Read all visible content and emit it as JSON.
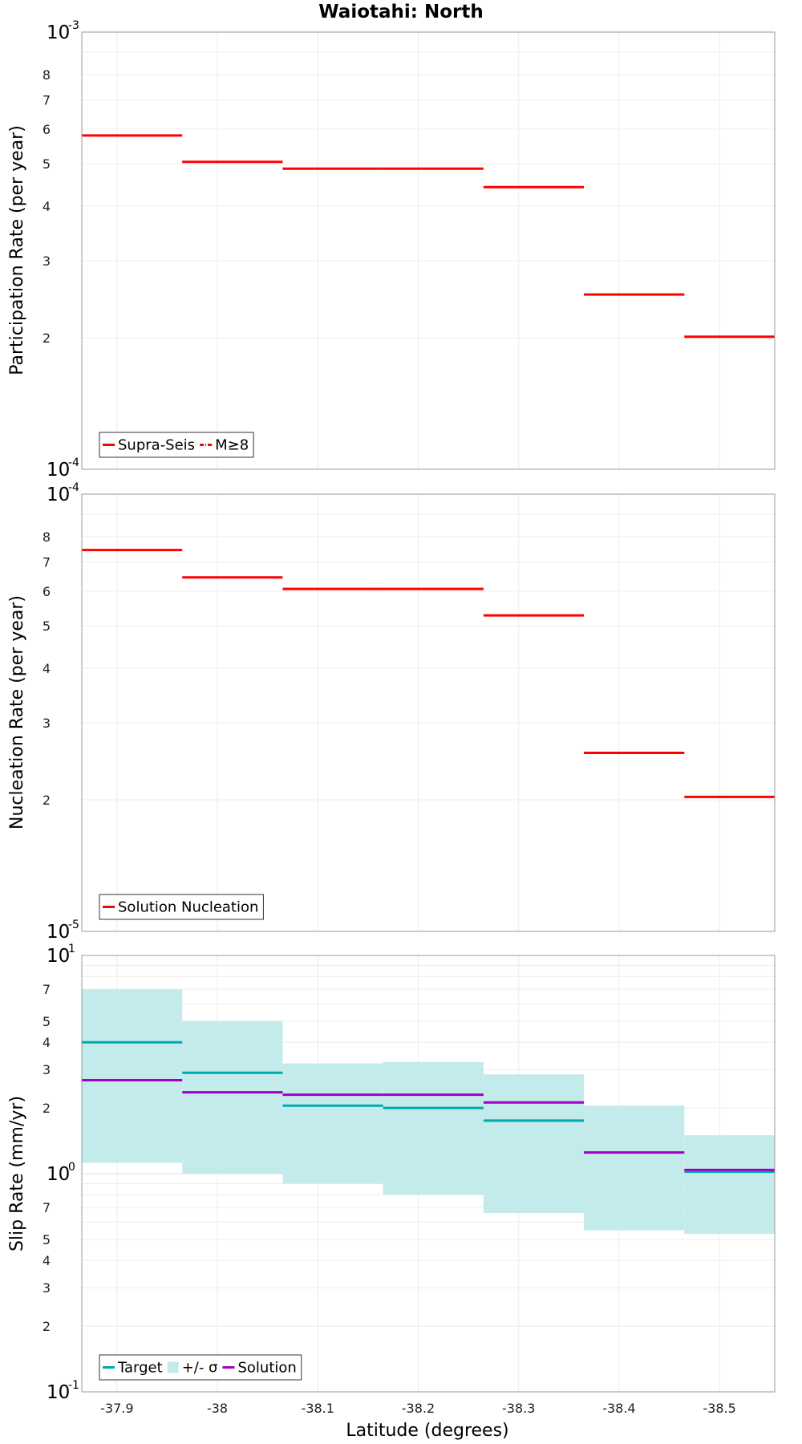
{
  "title": "Waiotahi: North",
  "x_axis_label": "Latitude (degrees)",
  "chart_data": [
    {
      "type": "line",
      "ylabel": "Participation Rate (per year)",
      "yscale": "log",
      "ylim": [
        0.0001,
        0.001
      ],
      "xlim": [
        -37.865,
        -38.555
      ],
      "x_ticks": [
        -37.9,
        -38,
        -38.1,
        -38.2,
        -38.3,
        -38.4,
        -38.5
      ],
      "y_decade_labels": [
        {
          "base": "10",
          "exp": "-3"
        },
        {
          "base": "10",
          "exp": "-4"
        }
      ],
      "y_minor_labels": [
        "8",
        "7",
        "6",
        "5",
        "4",
        "3",
        "2"
      ],
      "grid": true,
      "legend_position": "bottom-left",
      "legend": [
        {
          "label": "Supra-Seis",
          "color": "#ff0000",
          "style": "solid"
        },
        {
          "label": "M≥8",
          "color": "#ff0000",
          "style": "dash-dot"
        }
      ],
      "series": [
        {
          "name": "Supra-Seis",
          "color": "#ff0000",
          "segments": [
            {
              "x0": -37.865,
              "x1": -37.965,
              "y": 0.00058
            },
            {
              "x0": -37.965,
              "x1": -38.065,
              "y": 0.000505
            },
            {
              "x0": -38.065,
              "x1": -38.165,
              "y": 0.000487
            },
            {
              "x0": -38.165,
              "x1": -38.265,
              "y": 0.000487
            },
            {
              "x0": -38.265,
              "x1": -38.365,
              "y": 0.000442
            },
            {
              "x0": -38.365,
              "x1": -38.465,
              "y": 0.000251
            },
            {
              "x0": -38.465,
              "x1": -38.555,
              "y": 0.000201
            }
          ]
        }
      ]
    },
    {
      "type": "line",
      "ylabel": "Nucleation Rate (per year)",
      "yscale": "log",
      "ylim": [
        1e-05,
        0.0001
      ],
      "xlim": [
        -37.865,
        -38.555
      ],
      "x_ticks": [
        -37.9,
        -38,
        -38.1,
        -38.2,
        -38.3,
        -38.4,
        -38.5
      ],
      "y_decade_labels": [
        {
          "base": "10",
          "exp": "-4"
        },
        {
          "base": "10",
          "exp": "-5"
        }
      ],
      "y_minor_labels": [
        "8",
        "7",
        "6",
        "5",
        "4",
        "3",
        "2"
      ],
      "grid": true,
      "legend_position": "bottom-left",
      "legend": [
        {
          "label": "Solution Nucleation",
          "color": "#ff0000",
          "style": "solid"
        }
      ],
      "series": [
        {
          "name": "Solution Nucleation",
          "color": "#ff0000",
          "segments": [
            {
              "x0": -37.865,
              "x1": -37.965,
              "y": 7.45e-05
            },
            {
              "x0": -37.965,
              "x1": -38.065,
              "y": 6.45e-05
            },
            {
              "x0": -38.065,
              "x1": -38.165,
              "y": 6.07e-05
            },
            {
              "x0": -38.165,
              "x1": -38.265,
              "y": 6.07e-05
            },
            {
              "x0": -38.265,
              "x1": -38.365,
              "y": 5.28e-05
            },
            {
              "x0": -38.365,
              "x1": -38.465,
              "y": 2.56e-05
            },
            {
              "x0": -38.465,
              "x1": -38.555,
              "y": 2.03e-05
            }
          ]
        }
      ]
    },
    {
      "type": "line",
      "ylabel": "Slip Rate (mm/yr)",
      "yscale": "log",
      "ylim": [
        0.1,
        10
      ],
      "xlim": [
        -37.865,
        -38.555
      ],
      "x_ticks": [
        -37.9,
        -38,
        -38.1,
        -38.2,
        -38.3,
        -38.4,
        -38.5
      ],
      "y_decade_labels": [
        {
          "base": "10",
          "exp": "1"
        },
        {
          "base": "10",
          "exp": "0"
        },
        {
          "base": "10",
          "exp": "-1"
        }
      ],
      "y_minor_labels": [
        "7",
        "5",
        "4",
        "3",
        "2",
        "7",
        "5",
        "4",
        "3",
        "2"
      ],
      "grid": true,
      "legend_position": "bottom-left",
      "legend": [
        {
          "label": "Target",
          "color": "#00aaaa",
          "style": "solid"
        },
        {
          "label": "+/- σ",
          "color": "#c3ebeb",
          "style": "box"
        },
        {
          "label": "Solution",
          "color": "#a000c8",
          "style": "solid"
        }
      ],
      "band": {
        "name": "+/- σ",
        "color": "#c3ebeb",
        "segments": [
          {
            "x0": -37.865,
            "x1": -37.965,
            "low": 1.12,
            "high": 7.0
          },
          {
            "x0": -37.965,
            "x1": -38.065,
            "low": 1.0,
            "high": 5.0
          },
          {
            "x0": -38.065,
            "x1": -38.165,
            "low": 0.9,
            "high": 3.2
          },
          {
            "x0": -38.165,
            "x1": -38.265,
            "low": 0.8,
            "high": 3.25
          },
          {
            "x0": -38.265,
            "x1": -38.365,
            "low": 0.66,
            "high": 2.85
          },
          {
            "x0": -38.365,
            "x1": -38.465,
            "low": 0.55,
            "high": 2.05
          },
          {
            "x0": -38.465,
            "x1": -38.555,
            "low": 0.53,
            "high": 1.5
          }
        ]
      },
      "series": [
        {
          "name": "Target",
          "color": "#00aaaa",
          "segments": [
            {
              "x0": -37.865,
              "x1": -37.965,
              "y": 4.0
            },
            {
              "x0": -37.965,
              "x1": -38.065,
              "y": 2.9
            },
            {
              "x0": -38.065,
              "x1": -38.165,
              "y": 2.05
            },
            {
              "x0": -38.165,
              "x1": -38.265,
              "y": 2.0
            },
            {
              "x0": -38.265,
              "x1": -38.365,
              "y": 1.75
            },
            {
              "x0": -38.465,
              "x1": -38.555,
              "y": 1.02
            }
          ]
        },
        {
          "name": "Solution",
          "color": "#a000c8",
          "segments": [
            {
              "x0": -37.865,
              "x1": -37.965,
              "y": 2.68
            },
            {
              "x0": -37.965,
              "x1": -38.065,
              "y": 2.36
            },
            {
              "x0": -38.065,
              "x1": -38.165,
              "y": 2.3
            },
            {
              "x0": -38.165,
              "x1": -38.265,
              "y": 2.3
            },
            {
              "x0": -38.265,
              "x1": -38.365,
              "y": 2.12
            },
            {
              "x0": -38.365,
              "x1": -38.465,
              "y": 1.25
            },
            {
              "x0": -38.465,
              "x1": -38.555,
              "y": 1.04
            }
          ]
        }
      ]
    }
  ]
}
